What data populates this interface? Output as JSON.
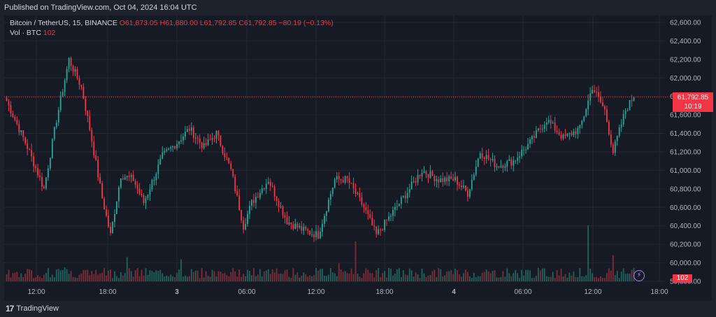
{
  "header": {
    "published": "Published on TradingView.com, Oct 04, 2024 16:04 UTC"
  },
  "legend": {
    "symbol": "Bitcoin / TetherUS, 15, BINANCE",
    "open": "O61,873.05",
    "high": "H61,880.00",
    "low": "L61,792.85",
    "close": "C61,792.85",
    "change": "−80.19 (−0.13%)",
    "vol_label": "Vol · BTC",
    "vol_value": "102"
  },
  "price_tag": {
    "price": "61,792.85",
    "countdown": "10:19"
  },
  "vol_tag": "102",
  "footer": {
    "brand": "TradingView",
    "logo": "tradingview-logo"
  },
  "colors": {
    "up": "#26a69a",
    "down": "#f23645",
    "bg": "#161a25",
    "grid": "#242833"
  },
  "chart_data": {
    "type": "candlestick",
    "y_axis": {
      "min": 59800,
      "max": 62600,
      "ticks": [
        "62,600.00",
        "62,400.00",
        "62,200.00",
        "62,000.00",
        "61,800.00",
        "61,600.00",
        "61,400.00",
        "61,200.00",
        "61,000.00",
        "60,800.00",
        "60,600.00",
        "60,400.00",
        "60,200.00",
        "60,000.00",
        "59,800.00"
      ]
    },
    "x_axis": {
      "ticks": [
        "12:00",
        "18:00",
        "3",
        "06:00",
        "12:00",
        "18:00",
        "4",
        "06:00",
        "12:00",
        "18:00"
      ],
      "bold_ticks": [
        "3",
        "4"
      ]
    },
    "current_price": 61792.85,
    "anchors": [
      [
        0,
        61750
      ],
      [
        10,
        61250
      ],
      [
        18,
        60800
      ],
      [
        24,
        61550
      ],
      [
        30,
        62200
      ],
      [
        36,
        61900
      ],
      [
        40,
        61450
      ],
      [
        46,
        60700
      ],
      [
        50,
        60300
      ],
      [
        55,
        60950
      ],
      [
        61,
        60900
      ],
      [
        66,
        60650
      ],
      [
        75,
        61150
      ],
      [
        82,
        61300
      ],
      [
        88,
        61450
      ],
      [
        95,
        61250
      ],
      [
        101,
        61400
      ],
      [
        108,
        61000
      ],
      [
        114,
        60400
      ],
      [
        118,
        60650
      ],
      [
        126,
        60900
      ],
      [
        135,
        60450
      ],
      [
        143,
        60350
      ],
      [
        150,
        60300
      ],
      [
        158,
        60900
      ],
      [
        164,
        60900
      ],
      [
        172,
        60600
      ],
      [
        178,
        60300
      ],
      [
        186,
        60550
      ],
      [
        194,
        60800
      ],
      [
        200,
        61000
      ],
      [
        208,
        60900
      ],
      [
        216,
        60900
      ],
      [
        222,
        60750
      ],
      [
        228,
        61200
      ],
      [
        236,
        61050
      ],
      [
        244,
        61100
      ],
      [
        252,
        61300
      ],
      [
        260,
        61550
      ],
      [
        268,
        61350
      ],
      [
        276,
        61450
      ],
      [
        282,
        61900
      ],
      [
        288,
        61650
      ],
      [
        292,
        61200
      ],
      [
        298,
        61650
      ],
      [
        302,
        61800
      ]
    ],
    "volume": {
      "max": 140,
      "typical": 20,
      "spikes": [
        [
          28,
          35
        ],
        [
          58,
          60
        ],
        [
          84,
          55
        ],
        [
          160,
          45
        ],
        [
          168,
          100
        ],
        [
          280,
          140
        ],
        [
          292,
          65
        ]
      ]
    }
  }
}
